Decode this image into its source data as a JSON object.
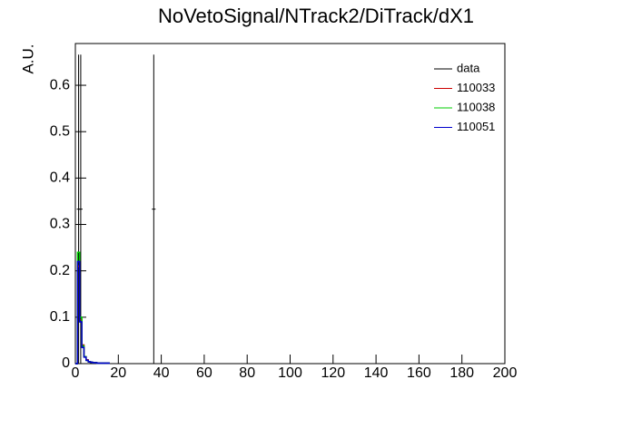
{
  "chart_data": {
    "type": "histogram",
    "title": "NoVetoSignal/NTrack2/DiTrack/dX1",
    "ylabel": "A.U.",
    "xlim": [
      0,
      200
    ],
    "xticks": [
      0,
      20,
      40,
      60,
      80,
      100,
      120,
      140,
      160,
      180,
      200
    ],
    "ylim": [
      0,
      0.69
    ],
    "yticks": [
      0,
      0.1,
      0.2,
      0.3,
      0.4,
      0.5,
      0.6
    ],
    "series": [
      {
        "name": "data",
        "color": "#000000",
        "x": [
          1.5,
          2.5,
          36.5
        ],
        "values": [
          0.333,
          0.333,
          0.333
        ],
        "errors": [
          0.333,
          0.333,
          0.333
        ]
      },
      {
        "name": "110033",
        "color": "#cc0000",
        "bins": [
          0,
          1,
          2,
          3,
          4,
          5,
          6,
          7,
          8,
          9,
          10,
          11,
          12,
          13,
          14,
          15,
          16
        ],
        "values": [
          0,
          0.21,
          0.095,
          0.04,
          0.015,
          0.008,
          0.004,
          0.003,
          0.002,
          0.002,
          0.001,
          0.001,
          0.001,
          0.001,
          0.001,
          0.001
        ]
      },
      {
        "name": "110038",
        "color": "#00cc00",
        "bins": [
          0,
          1,
          2,
          3,
          4,
          5,
          6,
          7,
          8,
          9,
          10,
          11,
          12,
          13,
          14,
          15,
          16
        ],
        "values": [
          0,
          0.24,
          0.1,
          0.038,
          0.015,
          0.007,
          0.004,
          0.003,
          0.002,
          0.002,
          0.001,
          0.001,
          0.001,
          0.001,
          0.001,
          0.001
        ]
      },
      {
        "name": "110051",
        "color": "#0000cc",
        "bins": [
          0,
          1,
          2,
          3,
          4,
          5,
          6,
          7,
          8,
          9,
          10,
          11,
          12,
          13,
          14,
          15,
          16
        ],
        "values": [
          0,
          0.22,
          0.09,
          0.035,
          0.014,
          0.007,
          0.004,
          0.003,
          0.002,
          0.002,
          0.001,
          0.001,
          0.001,
          0.001,
          0.001,
          0.001
        ]
      }
    ]
  }
}
